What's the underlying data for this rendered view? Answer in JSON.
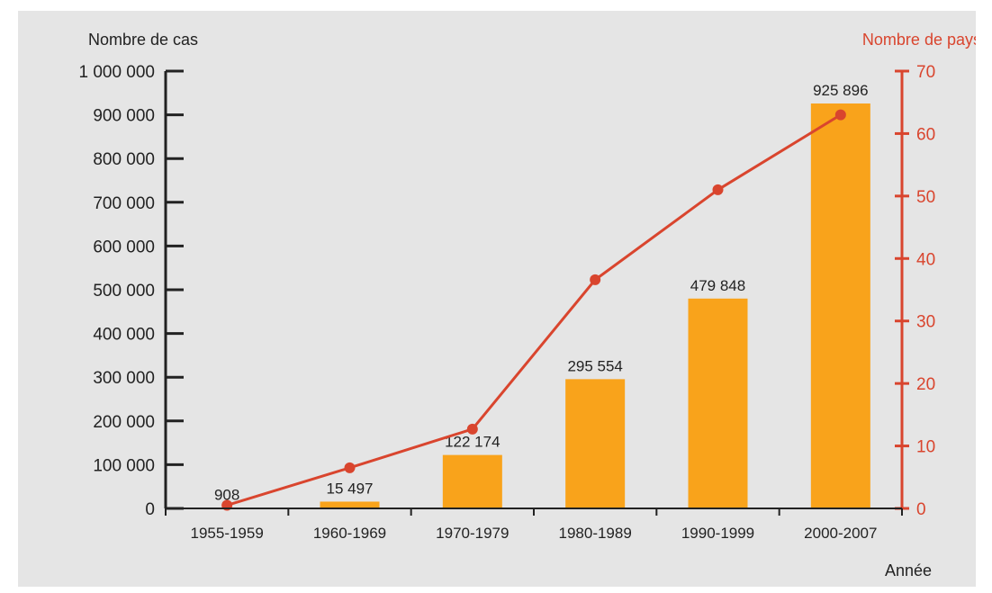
{
  "chart_data": {
    "type": "bar",
    "categories": [
      "1955-1959",
      "1960-1969",
      "1970-1979",
      "1980-1989",
      "1990-1999",
      "2000-2007"
    ],
    "series": [
      {
        "name": "Nombre de cas",
        "type": "bar",
        "axis": "left",
        "values": [
          908,
          15497,
          122174,
          295554,
          479848,
          925896
        ],
        "labels": [
          "908",
          "15 497",
          "122 174",
          "295 554",
          "479 848",
          "925 896"
        ]
      },
      {
        "name": "Nombre de pays",
        "type": "line",
        "axis": "right",
        "values": [
          0.5,
          6.5,
          12.7,
          36.6,
          51,
          63
        ]
      }
    ],
    "ylabel": "Nombre de cas",
    "y2label": "Nombre de pays",
    "xlabel": "Année",
    "ylim": [
      0,
      1000000
    ],
    "y2lim": [
      0,
      70
    ],
    "yticks": [
      "0",
      "100 000",
      "200 000",
      "300 000",
      "400 000",
      "500 000",
      "600 000",
      "700 000",
      "800 000",
      "900 000",
      "1 000 000"
    ],
    "y2ticks": [
      "0",
      "10",
      "20",
      "30",
      "40",
      "50",
      "60",
      "70"
    ],
    "grid": false,
    "colors": {
      "bar": "#f9a31b",
      "line": "#d9452e",
      "axis_left": "#222222",
      "axis_right": "#d9452e",
      "background": "#e5e5e5"
    }
  }
}
